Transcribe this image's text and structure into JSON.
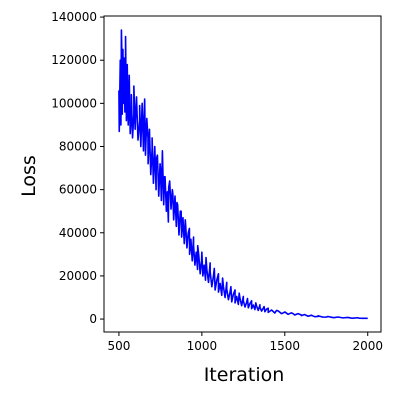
{
  "chart_data": {
    "type": "line",
    "title": "",
    "xlabel": "Iteration",
    "ylabel": "Loss",
    "xlim": [
      410,
      2080
    ],
    "ylim": [
      -6000,
      140500
    ],
    "xticks": [
      500,
      1000,
      1500,
      2000
    ],
    "yticks": [
      0,
      20000,
      40000,
      60000,
      80000,
      100000,
      120000,
      140000
    ],
    "grid": false,
    "legend": "none",
    "line_color": "#0000ff",
    "series": [
      {
        "noise": "high-frequency oscillation around the trend, amplitude shrinking as loss decreases",
        "trend_points": [
          [
            500,
            106000
          ],
          [
            510,
            102000
          ],
          [
            520,
            112000
          ],
          [
            530,
            110000
          ],
          [
            540,
            108000
          ],
          [
            550,
            104000
          ],
          [
            560,
            100000
          ],
          [
            575,
            97000
          ],
          [
            590,
            95000
          ],
          [
            600,
            93000
          ],
          [
            625,
            92000
          ],
          [
            650,
            88000
          ],
          [
            675,
            84000
          ],
          [
            700,
            79000
          ],
          [
            725,
            74000
          ],
          [
            750,
            70000
          ],
          [
            775,
            66000
          ],
          [
            800,
            61000
          ],
          [
            825,
            58000
          ],
          [
            850,
            54000
          ],
          [
            875,
            50000
          ],
          [
            900,
            46000
          ],
          [
            925,
            42000
          ],
          [
            950,
            38000
          ],
          [
            975,
            34000
          ],
          [
            1000,
            31000
          ],
          [
            1025,
            28500
          ],
          [
            1050,
            26000
          ],
          [
            1075,
            23500
          ],
          [
            1100,
            21000
          ],
          [
            1125,
            19000
          ],
          [
            1150,
            17000
          ],
          [
            1175,
            15000
          ],
          [
            1200,
            13500
          ],
          [
            1225,
            12000
          ],
          [
            1250,
            10500
          ],
          [
            1275,
            9500
          ],
          [
            1300,
            8500
          ],
          [
            1325,
            7500
          ],
          [
            1350,
            6600
          ],
          [
            1375,
            5800
          ],
          [
            1400,
            5000
          ],
          [
            1450,
            4000
          ],
          [
            1500,
            3200
          ],
          [
            1550,
            2500
          ],
          [
            1600,
            1900
          ],
          [
            1650,
            1500
          ],
          [
            1700,
            1200
          ],
          [
            1750,
            900
          ],
          [
            1800,
            700
          ],
          [
            1850,
            550
          ],
          [
            1900,
            450
          ],
          [
            1950,
            380
          ],
          [
            2000,
            330
          ]
        ],
        "peaks": [
          [
            502,
            87000
          ],
          [
            508,
            120000
          ],
          [
            512,
            90000
          ],
          [
            515,
            134000
          ],
          [
            520,
            95000
          ],
          [
            524,
            125000
          ],
          [
            528,
            100000
          ],
          [
            532,
            121000
          ],
          [
            536,
            96000
          ],
          [
            540,
            131000
          ],
          [
            545,
            92000
          ],
          [
            550,
            118000
          ],
          [
            556,
            90000
          ],
          [
            562,
            113000
          ],
          [
            568,
            86000
          ],
          [
            575,
            104000
          ],
          [
            582,
            84000
          ],
          [
            590,
            108000
          ],
          [
            598,
            88000
          ],
          [
            606,
            103000
          ],
          [
            615,
            83000
          ],
          [
            625,
            99000
          ],
          [
            632,
            80000
          ],
          [
            640,
            100000
          ],
          [
            648,
            78000
          ],
          [
            655,
            102000
          ],
          [
            660,
            76000
          ],
          [
            668,
            93000
          ],
          [
            676,
            72000
          ],
          [
            684,
            88000
          ],
          [
            692,
            67000
          ],
          [
            700,
            84000
          ],
          [
            708,
            63000
          ],
          [
            716,
            80000
          ],
          [
            724,
            60000
          ],
          [
            732,
            76000
          ],
          [
            740,
            57000
          ],
          [
            748,
            72000
          ],
          [
            756,
            55000
          ],
          [
            762,
            78000
          ],
          [
            770,
            53000
          ],
          [
            778,
            66000
          ],
          [
            786,
            50000
          ],
          [
            792,
            59000
          ],
          [
            798,
            45000
          ],
          [
            806,
            64000
          ],
          [
            814,
            51000
          ],
          [
            822,
            60000
          ],
          [
            830,
            46000
          ],
          [
            838,
            57000
          ],
          [
            846,
            43000
          ],
          [
            854,
            53000
          ],
          [
            862,
            39000
          ],
          [
            870,
            50000
          ],
          [
            878,
            38000
          ],
          [
            886,
            47000
          ],
          [
            894,
            35000
          ],
          [
            902,
            44000
          ],
          [
            910,
            33000
          ],
          [
            918,
            40000
          ],
          [
            926,
            30000
          ],
          [
            934,
            37000
          ],
          [
            942,
            27000
          ],
          [
            950,
            34000
          ],
          [
            958,
            25000
          ],
          [
            966,
            31000
          ],
          [
            974,
            23000
          ],
          [
            982,
            29000
          ],
          [
            990,
            21000
          ],
          [
            998,
            27000
          ],
          [
            1006,
            20000
          ],
          [
            1014,
            25000
          ],
          [
            1022,
            18000
          ],
          [
            1030,
            23000
          ],
          [
            1040,
            17000
          ],
          [
            1050,
            22000
          ],
          [
            1060,
            15000
          ],
          [
            1070,
            20000
          ],
          [
            1080,
            13500
          ],
          [
            1090,
            18000
          ],
          [
            1100,
            12500
          ],
          [
            1110,
            16500
          ],
          [
            1120,
            11000
          ],
          [
            1130,
            15000
          ],
          [
            1140,
            10000
          ],
          [
            1150,
            14000
          ],
          [
            1160,
            9000
          ],
          [
            1170,
            12500
          ],
          [
            1180,
            8000
          ],
          [
            1190,
            11500
          ],
          [
            1200,
            7500
          ],
          [
            1210,
            10500
          ],
          [
            1220,
            6800
          ],
          [
            1230,
            9500
          ],
          [
            1240,
            6200
          ],
          [
            1250,
            8500
          ],
          [
            1260,
            5600
          ],
          [
            1270,
            7800
          ],
          [
            1280,
            5200
          ],
          [
            1290,
            7200
          ],
          [
            1300,
            4800
          ],
          [
            1310,
            6500
          ],
          [
            1320,
            4400
          ],
          [
            1330,
            6000
          ],
          [
            1340,
            4000
          ],
          [
            1350,
            5500
          ],
          [
            1360,
            3700
          ],
          [
            1370,
            5000
          ],
          [
            1380,
            3400
          ],
          [
            1390,
            4600
          ],
          [
            1400,
            3100
          ],
          [
            1420,
            4200
          ],
          [
            1440,
            2800
          ],
          [
            1460,
            3800
          ],
          [
            1480,
            2500
          ],
          [
            1500,
            3300
          ],
          [
            1520,
            2200
          ],
          [
            1540,
            2900
          ],
          [
            1560,
            1900
          ],
          [
            1580,
            2500
          ],
          [
            1600,
            1600
          ],
          [
            1620,
            2100
          ],
          [
            1640,
            1300
          ],
          [
            1660,
            1800
          ],
          [
            1680,
            1100
          ],
          [
            1700,
            1500
          ],
          [
            1730,
            900
          ],
          [
            1760,
            1200
          ],
          [
            1790,
            700
          ],
          [
            1820,
            950
          ],
          [
            1850,
            550
          ],
          [
            1880,
            750
          ],
          [
            1910,
            420
          ],
          [
            1940,
            600
          ],
          [
            1970,
            350
          ],
          [
            2000,
            330
          ]
        ]
      }
    ]
  }
}
